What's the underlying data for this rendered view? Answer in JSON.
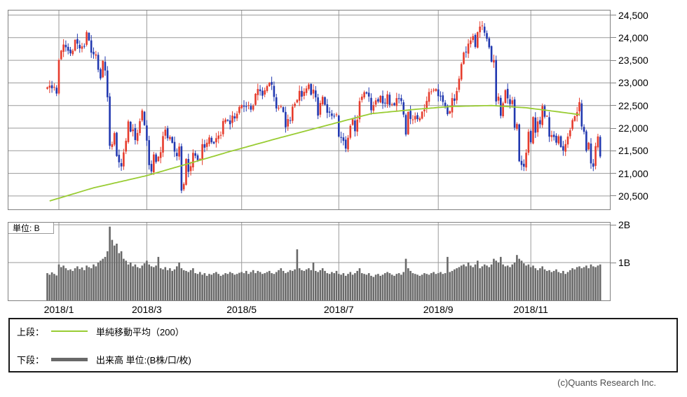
{
  "meta": {
    "copyright": "(c)Quants Research Inc."
  },
  "colors": {
    "candle_up": "#e63c2d",
    "candle_down": "#2239b0",
    "sma_line": "#99cc33",
    "volume_bar": "#696969",
    "grid": "#9a9a9a",
    "panel_border": "#808080",
    "text": "#000000"
  },
  "legend": {
    "rows": [
      {
        "prefix": "上段：",
        "label": "単純移動平均（200）"
      },
      {
        "prefix": "下段：",
        "label": "出来高 単位:(B株/口/枚)"
      }
    ]
  },
  "volume_panel": {
    "unit_label": "単位: B"
  },
  "chart_data": {
    "type": "candlestick",
    "title": "",
    "xlabel": "",
    "ylabel": "",
    "upper_panel": "daily candlesticks with 200-day simple moving average",
    "lower_panel": "daily volume in billions (B)",
    "y_axis": {
      "min": 20150,
      "max": 24600,
      "grid": true,
      "ticks": [
        {
          "label": "24,500",
          "value": 24500
        },
        {
          "label": "24,000",
          "value": 24000
        },
        {
          "label": "23,500",
          "value": 23500
        },
        {
          "label": "23,000",
          "value": 23000
        },
        {
          "label": "22,500",
          "value": 22500
        },
        {
          "label": "22,000",
          "value": 22000
        },
        {
          "label": "21,500",
          "value": 21500
        },
        {
          "label": "21,000",
          "value": 21000
        },
        {
          "label": "20,500",
          "value": 20500
        }
      ]
    },
    "volume_axis": {
      "min": 0,
      "max": 2.09,
      "ticks": [
        {
          "label": "2B",
          "value": 2
        },
        {
          "label": "1B",
          "value": 1
        }
      ]
    },
    "x_axis": {
      "months": [
        {
          "label": "2018/1",
          "index": 5
        },
        {
          "label": "2018/3",
          "index": 43
        },
        {
          "label": "2018/5",
          "index": 84
        },
        {
          "label": "2018/7",
          "index": 126
        },
        {
          "label": "2018/9",
          "index": 169
        },
        {
          "label": "2018/11",
          "index": 209
        }
      ]
    },
    "first_open": 22870,
    "closes": [
      22902,
      22938,
      22880,
      22911,
      22765,
      23506,
      23714,
      23849,
      23788,
      23710,
      23653,
      23714,
      23951,
      23868,
      23763,
      23808,
      23816,
      24124,
      23940,
      23669,
      23632,
      23629,
      23291,
      23098,
      23486,
      23274,
      22682,
      21610,
      21645,
      21890,
      21383,
      21244,
      21154,
      21465,
      21720,
      22149,
      21925,
      21971,
      21736,
      21893,
      22154,
      22390,
      22068,
      21724,
      21182,
      21042,
      21418,
      21253,
      21368,
      21469,
      21824,
      21968,
      21777,
      21804,
      21677,
      21481,
      21381,
      21592,
      20618,
      20766,
      21317,
      21032,
      21160,
      21454,
      21389,
      21292,
      21320,
      21645,
      21567,
      21678,
      21794,
      21687,
      21660,
      21779,
      21836,
      21848,
      22158,
      22191,
      22162,
      22088,
      22278,
      22215,
      22319,
      22468,
      22508,
      22473,
      22467,
      22509,
      22409,
      22497,
      22758,
      22865,
      22818,
      22717,
      22838,
      22930,
      23002,
      22960,
      22690,
      22437,
      22451,
      22481,
      22358,
      22019,
      22202,
      22171,
      22476,
      22540,
      22625,
      22824,
      22695,
      22804,
      22878,
      22966,
      22738,
      22851,
      22680,
      22278,
      22555,
      22693,
      22517,
      22338,
      22342,
      22272,
      22270,
      22305,
      21812,
      21786,
      21717,
      21547,
      21788,
      22052,
      22196,
      21932,
      22188,
      22597,
      22697,
      22794,
      22765,
      22698,
      22396,
      22510,
      22614,
      22587,
      22713,
      22544,
      22554,
      22747,
      22513,
      22525,
      22507,
      22663,
      22645,
      22598,
      22298,
      21857,
      22356,
      22204,
      22192,
      22270,
      22199,
      22219,
      22362,
      22410,
      22601,
      22799,
      22813,
      22848,
      22865,
      22707,
      22697,
      22580,
      22487,
      22307,
      22373,
      22664,
      22604,
      22821,
      23095,
      23420,
      23672,
      23675,
      23869,
      23940,
      24033,
      23796,
      24120,
      24245,
      24270,
      24110,
      23975,
      23784,
      23469,
      23506,
      22590,
      22695,
      22271,
      22549,
      22841,
      22658,
      22532,
      22615,
      22010,
      22091,
      21268,
      21185,
      21149,
      21457,
      21920,
      21688,
      22244,
      21899,
      22148,
      22086,
      22487,
      22250,
      22269,
      21811,
      21846,
      21804,
      21680,
      21821,
      21583,
      21507,
      21647,
      21812,
      21952,
      22177,
      22263,
      22351,
      22574,
      22036,
      21919,
      21502,
      21678,
      21220,
      21148,
      21602,
      21816,
      21374
    ],
    "volumes_b": [
      0.72,
      0.68,
      0.74,
      0.7,
      0.66,
      0.95,
      0.88,
      0.92,
      0.85,
      0.8,
      0.82,
      0.78,
      0.85,
      0.9,
      0.83,
      0.87,
      0.8,
      0.92,
      0.88,
      0.85,
      0.95,
      0.9,
      1.0,
      1.05,
      1.1,
      1.15,
      1.3,
      1.95,
      1.6,
      1.45,
      1.5,
      1.25,
      1.3,
      1.1,
      1.05,
      0.95,
      1.0,
      0.9,
      0.95,
      0.88,
      0.85,
      0.92,
      0.98,
      1.05,
      0.95,
      0.9,
      0.88,
      0.92,
      1.15,
      0.85,
      0.82,
      0.88,
      0.8,
      0.85,
      0.78,
      0.82,
      0.9,
      1.0,
      0.85,
      0.8,
      0.78,
      0.75,
      0.8,
      0.85,
      0.72,
      0.7,
      0.75,
      0.68,
      0.72,
      0.65,
      0.7,
      0.68,
      0.72,
      0.75,
      0.7,
      0.65,
      0.68,
      0.72,
      0.7,
      0.75,
      0.72,
      0.68,
      0.7,
      0.73,
      0.75,
      0.72,
      0.78,
      0.7,
      0.75,
      0.8,
      0.72,
      0.78,
      0.75,
      0.7,
      0.72,
      0.75,
      0.78,
      0.72,
      0.7,
      0.75,
      0.8,
      0.85,
      0.78,
      0.72,
      0.75,
      0.8,
      0.78,
      0.82,
      1.35,
      0.85,
      0.8,
      0.78,
      0.82,
      0.85,
      0.8,
      1.0,
      0.78,
      0.75,
      0.8,
      0.85,
      0.78,
      0.72,
      0.7,
      0.75,
      0.72,
      0.78,
      0.7,
      0.68,
      0.72,
      0.65,
      0.7,
      0.75,
      0.68,
      0.72,
      0.78,
      0.85,
      0.72,
      0.7,
      0.68,
      0.72,
      0.65,
      0.62,
      0.68,
      0.7,
      0.65,
      0.68,
      0.72,
      0.75,
      0.72,
      0.68,
      0.65,
      0.7,
      0.72,
      0.68,
      0.75,
      1.1,
      0.85,
      0.78,
      0.72,
      0.7,
      0.68,
      0.65,
      0.68,
      0.72,
      0.7,
      0.68,
      0.72,
      0.75,
      0.7,
      0.72,
      0.75,
      0.7,
      0.72,
      1.15,
      0.75,
      0.78,
      0.82,
      0.85,
      0.88,
      0.92,
      0.95,
      0.9,
      1.0,
      0.92,
      0.88,
      0.95,
      1.05,
      0.85,
      0.9,
      0.95,
      0.92,
      0.88,
      0.95,
      1.1,
      1.05,
      1.0,
      1.15,
      0.95,
      0.9,
      0.92,
      0.88,
      0.95,
      1.0,
      1.2,
      1.1,
      1.05,
      0.98,
      0.92,
      0.95,
      0.88,
      0.92,
      0.85,
      0.8,
      0.85,
      0.9,
      0.82,
      0.78,
      0.8,
      0.75,
      0.78,
      0.82,
      0.75,
      0.72,
      0.78,
      0.7,
      0.75,
      0.8,
      0.85,
      0.82,
      0.88,
      0.9,
      0.85,
      0.88,
      0.92,
      0.85,
      0.95,
      0.9,
      0.88,
      0.92,
      0.95
    ],
    "sma200_anchors": [
      [
        1,
        20390
      ],
      [
        20,
        20680
      ],
      [
        43,
        20950
      ],
      [
        60,
        21200
      ],
      [
        78,
        21470
      ],
      [
        100,
        21780
      ],
      [
        120,
        22050
      ],
      [
        140,
        22320
      ],
      [
        160,
        22420
      ],
      [
        175,
        22480
      ],
      [
        192,
        22500
      ],
      [
        207,
        22450
      ],
      [
        218,
        22380
      ],
      [
        230,
        22300
      ]
    ],
    "legend_entries": [
      "単純移動平均（200）",
      "出来高 単位:(B株/口/枚)"
    ]
  }
}
